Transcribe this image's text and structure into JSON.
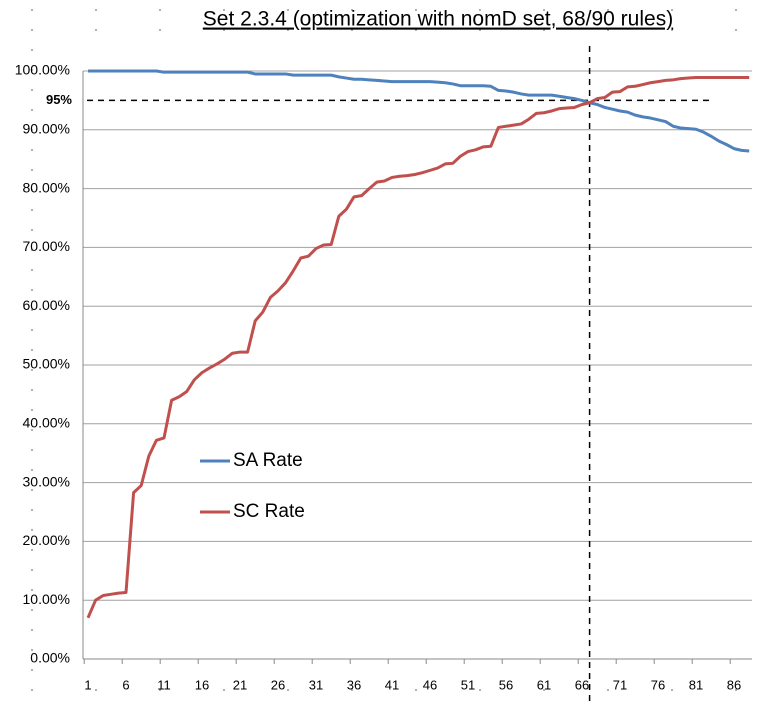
{
  "chart_data": {
    "type": "line",
    "title": "Set 2.3.4 (optimization with nomD set, 68/90 rules)",
    "categories": [
      1,
      null,
      null,
      null,
      null,
      6,
      null,
      null,
      null,
      null,
      11,
      null,
      null,
      null,
      null,
      16,
      null,
      null,
      null,
      null,
      21,
      null,
      null,
      null,
      null,
      26,
      null,
      null,
      null,
      null,
      31,
      null,
      null,
      null,
      null,
      36,
      null,
      null,
      null,
      null,
      41,
      null,
      null,
      null,
      null,
      46,
      null,
      null,
      null,
      null,
      51,
      null,
      null,
      null,
      null,
      56,
      null,
      null,
      null,
      null,
      61,
      null,
      null,
      null,
      null,
      66,
      null,
      null,
      null,
      null,
      71,
      null,
      null,
      null,
      null,
      76,
      null,
      null,
      null,
      null,
      81,
      null,
      null,
      null,
      null,
      86,
      null,
      null
    ],
    "series": [
      {
        "name": "SA Rate",
        "color": "#4f81bd",
        "values": [
          100,
          100,
          100,
          100,
          100,
          100,
          100,
          100,
          100,
          100,
          99.8,
          99.8,
          99.8,
          99.8,
          99.8,
          99.8,
          99.8,
          99.8,
          99.8,
          99.8,
          99.8,
          99.8,
          99.5,
          99.5,
          99.5,
          99.5,
          99.5,
          99.3,
          99.3,
          99.3,
          99.3,
          99.3,
          99.3,
          99,
          98.8,
          98.6,
          98.6,
          98.5,
          98.4,
          98.3,
          98.2,
          98.2,
          98.2,
          98.2,
          98.2,
          98.2,
          98.1,
          98,
          97.8,
          97.5,
          97.5,
          97.5,
          97.5,
          97.4,
          96.7,
          96.6,
          96.4,
          96.1,
          95.9,
          95.9,
          95.9,
          95.9,
          95.7,
          95.5,
          95.3,
          95,
          94.6,
          94.3,
          93.8,
          93.5,
          93.2,
          93,
          92.5,
          92.2,
          92,
          91.7,
          91.4,
          90.6,
          90.3,
          90.2,
          90.1,
          89.6,
          88.9,
          88.1,
          87.5,
          86.8,
          86.5,
          86.4
        ]
      },
      {
        "name": "SC Rate",
        "color": "#c0504d",
        "values": [
          7,
          10,
          10.8,
          11,
          11.2,
          11.3,
          28.3,
          29.5,
          34.5,
          37.2,
          37.6,
          44,
          44.6,
          45.5,
          47.5,
          48.7,
          49.5,
          50.2,
          51,
          52,
          52.2,
          52.2,
          57.5,
          59,
          61.5,
          62.6,
          64,
          66,
          68.2,
          68.5,
          69.8,
          70.4,
          70.5,
          75.3,
          76.5,
          78.6,
          78.8,
          80,
          81.1,
          81.3,
          81.9,
          82.1,
          82.2,
          82.4,
          82.7,
          83.1,
          83.5,
          84.2,
          84.3,
          85.5,
          86.3,
          86.6,
          87.1,
          87.2,
          90.4,
          90.6,
          90.8,
          91,
          91.8,
          92.8,
          92.9,
          93.2,
          93.6,
          93.7,
          93.8,
          94.3,
          94.6,
          95.3,
          95.5,
          96.4,
          96.5,
          97.3,
          97.4,
          97.7,
          98,
          98.2,
          98.4,
          98.5,
          98.7,
          98.8,
          98.9,
          98.9,
          98.9,
          98.9,
          98.9,
          98.9,
          98.9,
          98.9
        ]
      }
    ],
    "ylim": [
      0,
      100
    ],
    "yticks": [
      {
        "value": 0,
        "label": "0.00%"
      },
      {
        "value": 10,
        "label": "10.00%"
      },
      {
        "value": 20,
        "label": "20.00%"
      },
      {
        "value": 30,
        "label": "30.00%"
      },
      {
        "value": 40,
        "label": "40.00%"
      },
      {
        "value": 50,
        "label": "50.00%"
      },
      {
        "value": 60,
        "label": "60.00%"
      },
      {
        "value": 70,
        "label": "70.00%"
      },
      {
        "value": 80,
        "label": "80.00%"
      },
      {
        "value": 90,
        "label": "90.00%"
      },
      {
        "value": 100,
        "label": "100.00%"
      }
    ],
    "grid": true,
    "reference_y": {
      "value": 95,
      "label": "95%"
    },
    "reference_x": 67
  }
}
